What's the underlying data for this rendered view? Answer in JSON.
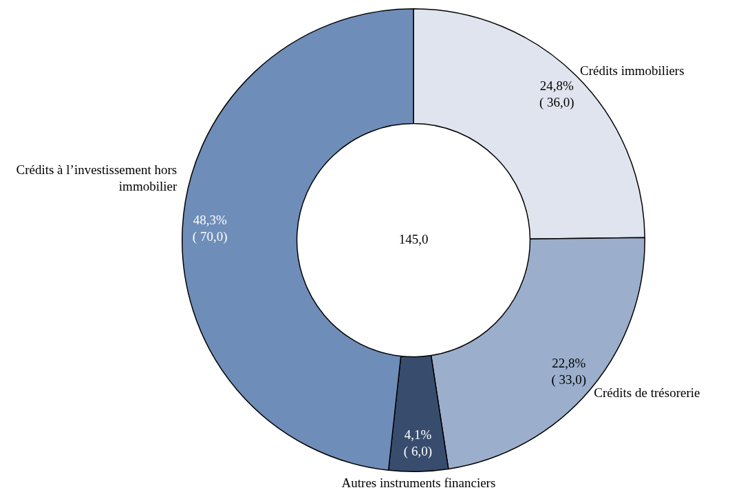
{
  "chart_data": {
    "type": "donut",
    "categories": [
      "Crédits immobiliers",
      "Crédits de trésorerie",
      "Autres instruments financiers",
      "Crédits à l’investissement hors immobilier"
    ],
    "values": [
      36,
      33,
      6,
      70
    ],
    "colors": [
      "#dfe4ee",
      "#9baecb",
      "#384d6e",
      "#6e8db8"
    ],
    "value_labels": [
      "24,8%\n( 36,0)",
      "22,8%\n( 33,0)",
      "4,1%\n( 6,0)",
      "48,3%\n( 70,0)"
    ],
    "annotations": [
      "145,0"
    ],
    "legend": false
  }
}
